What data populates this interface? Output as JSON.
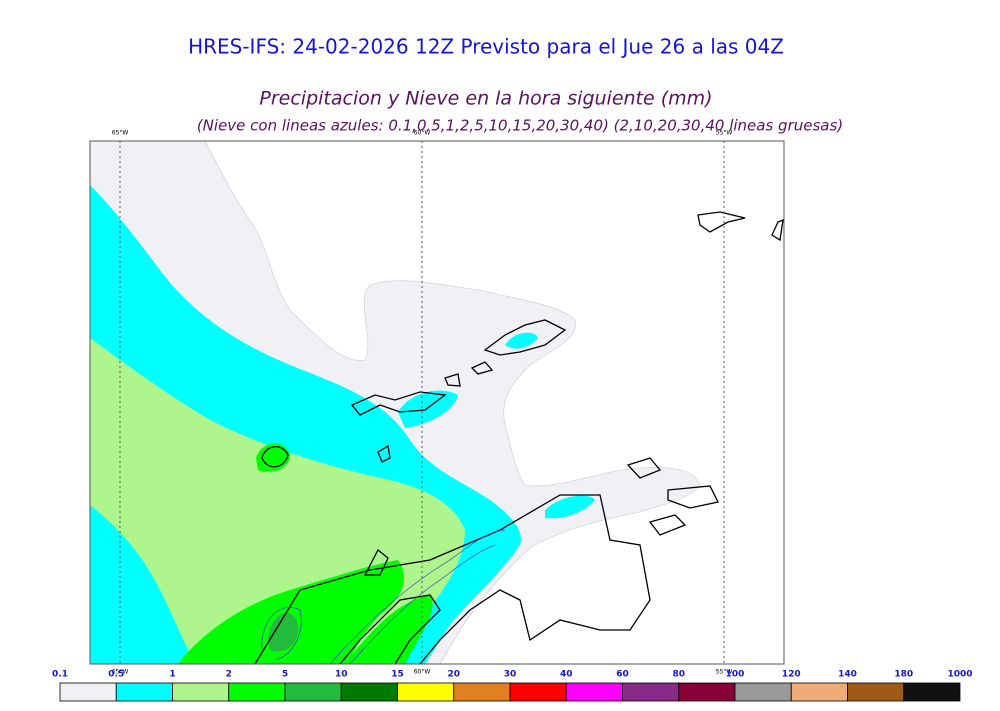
{
  "header": {
    "title": "HRES-IFS: 24-02-2026 12Z Previsto para el Jue 26 a las 04Z",
    "subtitle": "Precipitacion y Nieve en la hora siguiente (mm)",
    "note": "(Nieve con lineas azules: 0.1,0.5,1,2,5,10,15,20,30,40)  (2,10,20,30,40 lineas gruesas)"
  },
  "map": {
    "meridians": [
      "65°W",
      "60°W",
      "55°W"
    ]
  },
  "colorbar": {
    "labels": [
      "0.1",
      "0.5",
      "1",
      "2",
      "5",
      "10",
      "15",
      "20",
      "30",
      "40",
      "60",
      "80",
      "100",
      "120",
      "140",
      "180",
      "1000"
    ],
    "colors": [
      "#f0f0f5",
      "#00ffff",
      "#aef58e",
      "#00ff00",
      "#22bb3c",
      "#007a00",
      "#ffff00",
      "#e08020",
      "#ff0000",
      "#ff00ff",
      "#882a88",
      "#880038",
      "#999999",
      "#f0ac78",
      "#a05a18",
      "#111111"
    ]
  }
}
